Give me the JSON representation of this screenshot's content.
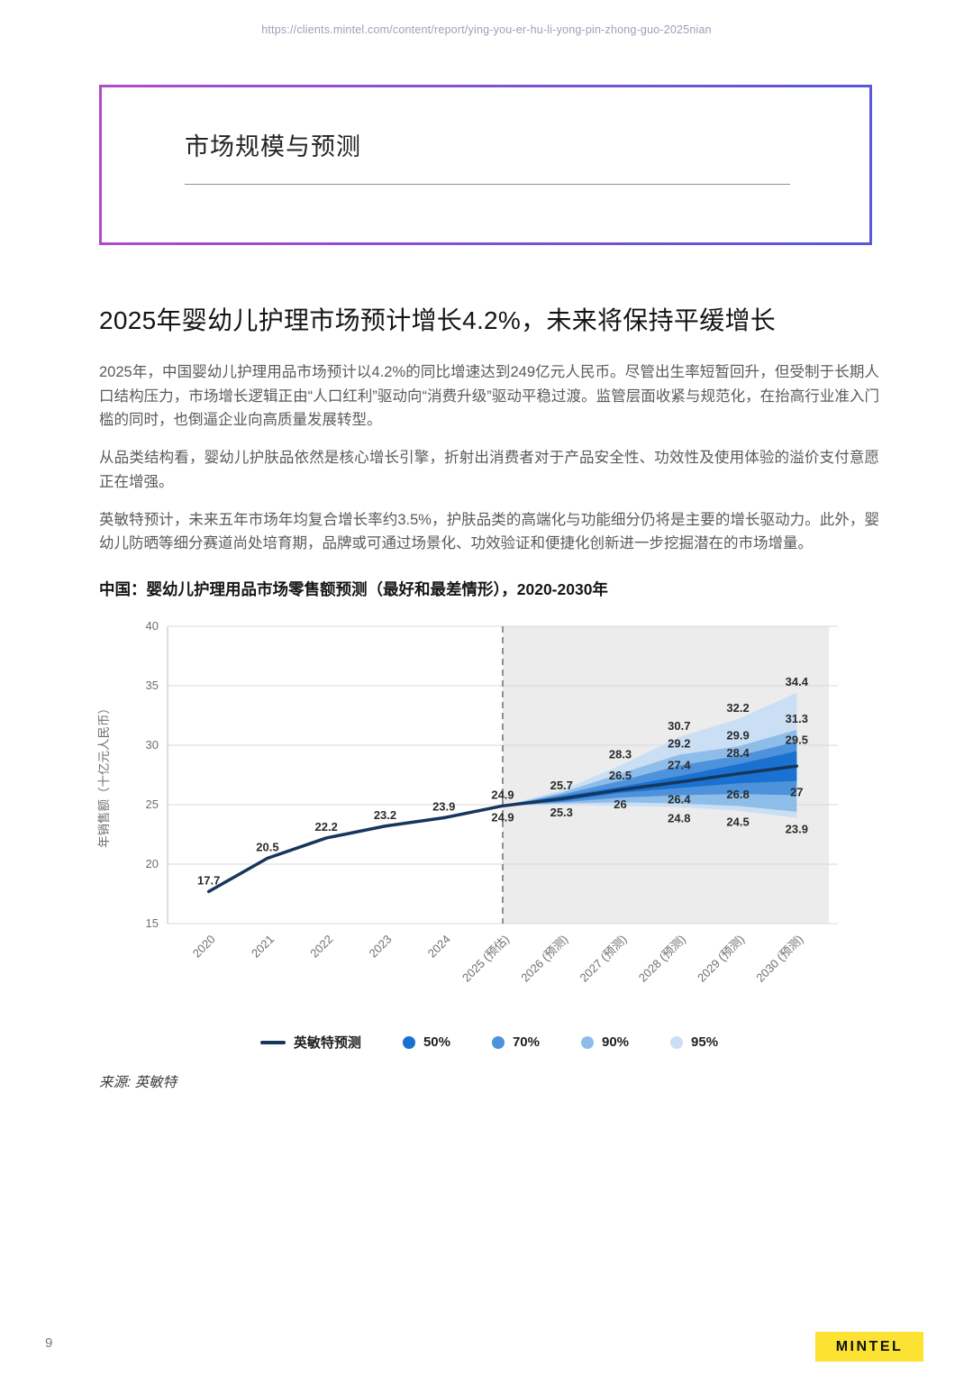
{
  "page": {
    "url": "https://clients.mintel.com/content/report/ying-you-er-hu-li-yong-pin-zhong-guo-2025nian",
    "page_number": "9",
    "brand_logo": "MINTEL",
    "brand_color": "#fbe233"
  },
  "header_box": {
    "title": "市场规模与预测"
  },
  "article": {
    "heading": "2025年婴幼儿护理市场预计增长4.2%，未来将保持平缓增长",
    "paragraphs": [
      "2025年，中国婴幼儿护理用品市场预计以4.2%的同比增速达到249亿元人民币。尽管出生率短暂回升，但受制于长期人口结构压力，市场增长逻辑正由“人口红利”驱动向“消费升级”驱动平稳过渡。监管层面收紧与规范化，在抬高行业准入门槛的同时，也倒逼企业向高质量发展转型。",
      "从品类结构看，婴幼儿护肤品依然是核心增长引擎，折射出消费者对于产品安全性、功效性及使用体验的溢价支付意愿正在增强。",
      "英敏特预计，未来五年市场年均复合增长率约3.5%，护肤品类的高端化与功能细分仍将是主要的增长驱动力。此外，婴幼儿防晒等细分赛道尚处培育期，品牌或可通过场景化、功效验证和便捷化创新进一步挖掘潜在的市场增量。"
    ]
  },
  "chart_data": {
    "type": "line",
    "title": "中国：婴幼儿护理用品市场零售额预测（最好和最差情形），2020-2030年",
    "ylabel": "年销售额（十亿元人民币）",
    "ylim": [
      15,
      40
    ],
    "yticks": [
      15,
      20,
      25,
      30,
      35,
      40
    ],
    "categories": [
      "2020",
      "2021",
      "2022",
      "2023",
      "2024",
      "2025 (预估)",
      "2026 (预测)",
      "2027 (预测)",
      "2028 (预测)",
      "2029 (预测)",
      "2030 (预测)"
    ],
    "forecast_start_index": 5,
    "forecast_region_color": "#ececec",
    "grid": true,
    "series": [
      {
        "name": "英敏特预测",
        "color": "#16365c",
        "values": [
          17.7,
          20.5,
          22.2,
          23.2,
          23.9,
          24.9,
          25.5,
          26.25,
          26.9,
          27.6,
          28.25
        ]
      }
    ],
    "bands": [
      {
        "name": "95%",
        "color": "#cadef4",
        "upper": [
          24.9,
          26.2,
          28.3,
          30.7,
          32.2,
          34.4
        ],
        "lower": [
          24.9,
          25.0,
          24.9,
          24.8,
          24.5,
          23.9
        ]
      },
      {
        "name": "90%",
        "color": "#8fbde9",
        "upper": [
          24.9,
          26.0,
          27.6,
          29.2,
          29.9,
          31.3
        ],
        "lower": [
          24.9,
          25.1,
          25.2,
          25.1,
          24.9,
          24.4
        ]
      },
      {
        "name": "70%",
        "color": "#4d92da",
        "upper": [
          24.9,
          25.85,
          27.0,
          28.3,
          29.1,
          30.3
        ],
        "lower": [
          24.9,
          25.2,
          25.6,
          25.8,
          25.9,
          25.8
        ]
      },
      {
        "name": "50%",
        "color": "#1a71d0",
        "upper": [
          24.9,
          25.7,
          26.5,
          27.4,
          28.4,
          29.5
        ],
        "lower": [
          24.9,
          25.3,
          26.0,
          26.4,
          26.8,
          27.0
        ]
      }
    ],
    "point_labels": [
      {
        "x_index": 0,
        "text": "17.7",
        "value": 17.7,
        "position": "above"
      },
      {
        "x_index": 1,
        "text": "20.5",
        "value": 20.5,
        "position": "above"
      },
      {
        "x_index": 2,
        "text": "22.2",
        "value": 22.2,
        "position": "above"
      },
      {
        "x_index": 3,
        "text": "23.2",
        "value": 23.2,
        "position": "above"
      },
      {
        "x_index": 4,
        "text": "23.9",
        "value": 23.9,
        "position": "above"
      },
      {
        "x_index": 5,
        "text": "24.9",
        "value": 24.9,
        "position": "above"
      },
      {
        "x_index": 5,
        "text": "24.9",
        "value": 24.9,
        "position": "below"
      },
      {
        "x_index": 6,
        "text": "25.7",
        "value": 25.7,
        "position": "above"
      },
      {
        "x_index": 6,
        "text": "25.3",
        "value": 25.3,
        "position": "below"
      },
      {
        "x_index": 7,
        "text": "28.3",
        "value": 28.3,
        "position": "above"
      },
      {
        "x_index": 7,
        "text": "26.5",
        "value": 26.5,
        "position": "above"
      },
      {
        "x_index": 7,
        "text": "26",
        "value": 26.0,
        "position": "below"
      },
      {
        "x_index": 8,
        "text": "30.7",
        "value": 30.7,
        "position": "above"
      },
      {
        "x_index": 8,
        "text": "29.2",
        "value": 29.2,
        "position": "above"
      },
      {
        "x_index": 8,
        "text": "27.4",
        "value": 27.4,
        "position": "above"
      },
      {
        "x_index": 8,
        "text": "26.4",
        "value": 26.4,
        "position": "below"
      },
      {
        "x_index": 8,
        "text": "24.8",
        "value": 24.8,
        "position": "below"
      },
      {
        "x_index": 9,
        "text": "32.2",
        "value": 32.2,
        "position": "above"
      },
      {
        "x_index": 9,
        "text": "29.9",
        "value": 29.9,
        "position": "above"
      },
      {
        "x_index": 9,
        "text": "28.4",
        "value": 28.4,
        "position": "above"
      },
      {
        "x_index": 9,
        "text": "26.8",
        "value": 26.8,
        "position": "below"
      },
      {
        "x_index": 9,
        "text": "24.5",
        "value": 24.5,
        "position": "below"
      },
      {
        "x_index": 10,
        "text": "34.4",
        "value": 34.4,
        "position": "above"
      },
      {
        "x_index": 10,
        "text": "31.3",
        "value": 31.3,
        "position": "above"
      },
      {
        "x_index": 10,
        "text": "29.5",
        "value": 29.5,
        "position": "above"
      },
      {
        "x_index": 10,
        "text": "27",
        "value": 27.0,
        "position": "below"
      },
      {
        "x_index": 10,
        "text": "23.9",
        "value": 23.9,
        "position": "below"
      }
    ],
    "legend": [
      {
        "swatch": "line",
        "label": "英敏特预测",
        "color": "#16365c"
      },
      {
        "swatch": "dot",
        "label": "50%",
        "color": "#1a71d0"
      },
      {
        "swatch": "dot",
        "label": "70%",
        "color": "#4d92da"
      },
      {
        "swatch": "dot",
        "label": "90%",
        "color": "#8fbde9"
      },
      {
        "swatch": "dot",
        "label": "95%",
        "color": "#cadef4"
      }
    ],
    "legend_position": "bottom",
    "source": "来源: 英敏特"
  }
}
